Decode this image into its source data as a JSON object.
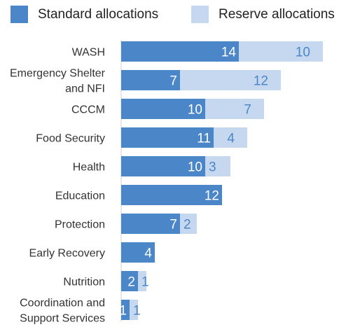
{
  "chart_data": {
    "type": "bar",
    "orientation": "horizontal",
    "stacked": true,
    "categories": [
      "WASH",
      "Emergency Shelter and NFI",
      "CCCM",
      "Food Security",
      "Health",
      "Education",
      "Protection",
      "Early Recovery",
      "Nutrition",
      "Coordination and Support Services"
    ],
    "category_lines": [
      [
        "WASH"
      ],
      [
        "Emergency Shelter",
        "and NFI"
      ],
      [
        "CCCM"
      ],
      [
        "Food Security"
      ],
      [
        "Health"
      ],
      [
        "Education"
      ],
      [
        "Protection"
      ],
      [
        "Early Recovery"
      ],
      [
        "Nutrition"
      ],
      [
        "Coordination and",
        "Support Services"
      ]
    ],
    "series": [
      {
        "name": "Standard allocations",
        "values": [
          14,
          7,
          10,
          11,
          10,
          12,
          7,
          4,
          2,
          1
        ],
        "color": "#4a86c8"
      },
      {
        "name": "Reserve allocations",
        "values": [
          10,
          12,
          7,
          4,
          3,
          0,
          2,
          0,
          1,
          1
        ],
        "color": "#c6d8ef"
      }
    ],
    "xlim": [
      0,
      25
    ],
    "grid": false,
    "legend_position": "top",
    "title": "",
    "xlabel": "",
    "ylabel": ""
  }
}
